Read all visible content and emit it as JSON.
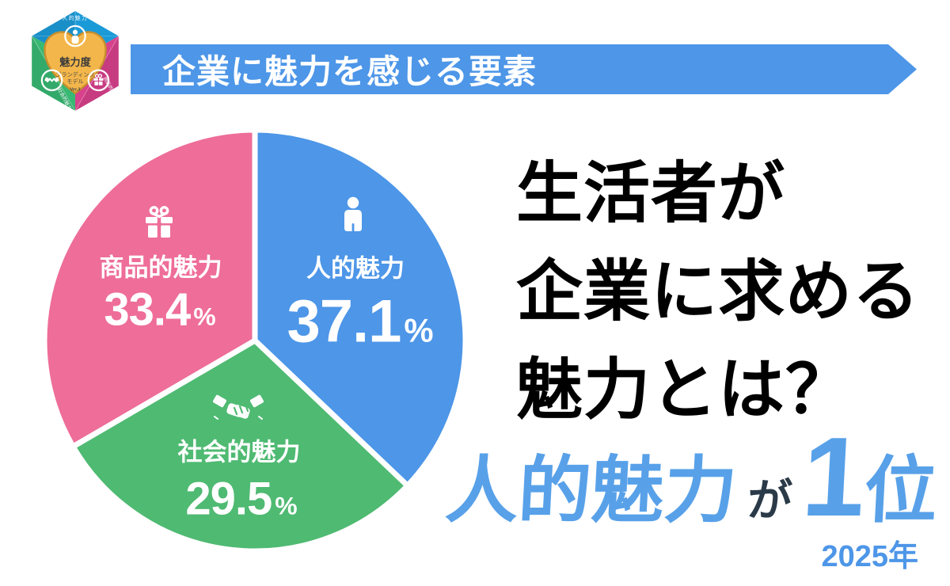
{
  "banner": {
    "title": "企業に魅力を感じる要素",
    "color": "#4d96e8",
    "text_color": "#ffffff"
  },
  "logo": {
    "heart_title": "魅力度",
    "heart_subtitle_line1": "ブランディング",
    "heart_subtitle_line2": "モデル",
    "version": "Ver.3",
    "top_label": "人的魅力",
    "left_label": "社会的魅力",
    "right_label": "商品的魅力",
    "colors": {
      "top_face": "#1b9ad8",
      "left_face": "#38b973",
      "right_face": "#d8418c",
      "heart": "#f3b64a",
      "heart_border": "#c78f2d"
    }
  },
  "chart_data": {
    "type": "pie",
    "title": "企業に魅力を感じる要素",
    "unit": "%",
    "direction": "clockwise",
    "start_angle": "12-oclock",
    "legend": "labels-inside-slices",
    "slices": [
      {
        "id": "human",
        "label": "人的魅力",
        "value": 37.1,
        "color": "#4d96e8",
        "icon": "person-icon"
      },
      {
        "id": "social",
        "label": "社会的魅力",
        "value": 29.5,
        "color": "#4fba72",
        "icon": "handshake-icon"
      },
      {
        "id": "product",
        "label": "商品的魅力",
        "value": 33.4,
        "color": "#ee6d99",
        "icon": "gift-icon"
      }
    ]
  },
  "headline": {
    "lines": [
      "生活者が",
      "企業に求める",
      "魅力とは？"
    ],
    "color": "#000000"
  },
  "conclusion": {
    "highlight": "人的魅力",
    "particle": "が",
    "rank_value": "1",
    "rank_unit": "位",
    "year": "2025年",
    "accent_color": "#58a1e9",
    "particle_color": "#2b3a48",
    "year_color": "#4d96e8"
  }
}
